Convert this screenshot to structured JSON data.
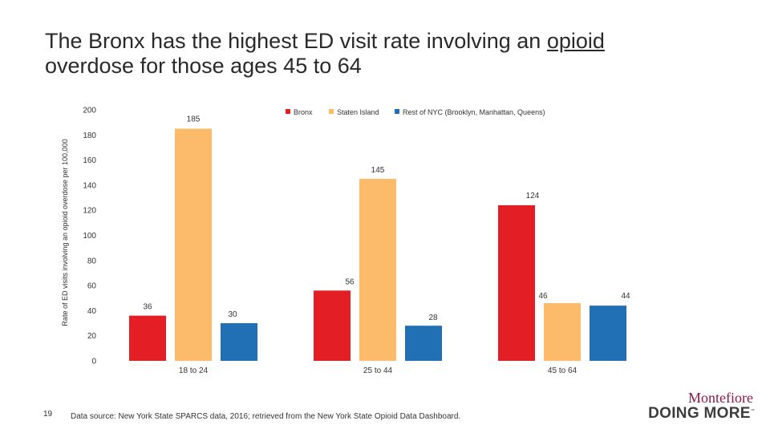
{
  "title_part1": "The Bronx has the highest ED visit rate involving an ",
  "title_underlined": "opioid",
  "title_part2": "overdose for those ages 45 to 64",
  "page_number": "19",
  "source_note": "Data source: New York State SPARCS data, 2016; retrieved from the New York State Opioid Data Dashboard.",
  "logo": {
    "top": "Montefiore",
    "bottom": "DOING MORE"
  },
  "chart_data": {
    "type": "bar",
    "categories": [
      "18 to 24",
      "25 to 44",
      "45 to 64"
    ],
    "series": [
      {
        "name": "Bronx",
        "color": "#e31e24",
        "values": [
          36,
          56,
          124
        ]
      },
      {
        "name": "Staten Island",
        "color": "#fbbb6b",
        "values": [
          185,
          145,
          46
        ]
      },
      {
        "name": "Rest of NYC (Brooklyn, Manhattan, Queens)",
        "color": "#2170b5",
        "values": [
          30,
          28,
          44
        ]
      }
    ],
    "ylabel": "Rate of ED visits involving an opioid overdose per 100,000",
    "ylim": [
      0,
      200
    ],
    "yticks": [
      0,
      20,
      40,
      60,
      80,
      100,
      120,
      140,
      160,
      180,
      200
    ],
    "legend_position": "top-right",
    "grid": false
  }
}
